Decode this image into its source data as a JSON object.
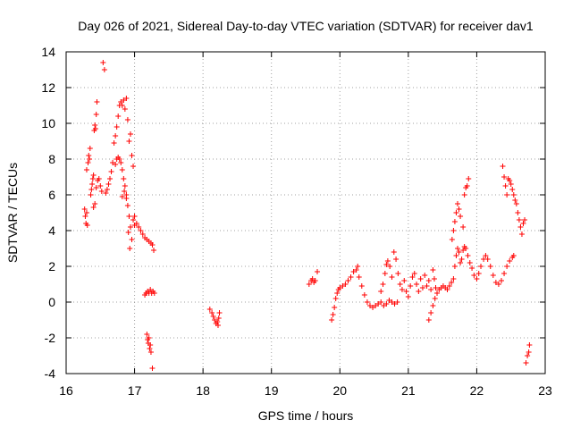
{
  "chart_data": {
    "type": "scatter",
    "title": "Day 026 of 2021, Sidereal Day-to-day VTEC variation (SDTVAR) for receiver dav1",
    "xlabel": "GPS time / hours",
    "ylabel": "SDTVAR / TECUs",
    "xlim": [
      16,
      23
    ],
    "ylim": [
      -4,
      14
    ],
    "grid": true,
    "marker": "+",
    "color": "#ff0000",
    "xticks": [
      "16",
      "17",
      "18",
      "19",
      "20",
      "21",
      "22",
      "23"
    ],
    "yticks": [
      "-4",
      "-2",
      "0",
      "2",
      "4",
      "6",
      "8",
      "10",
      "12",
      "14"
    ],
    "series": [
      {
        "name": "SDTVAR",
        "points": [
          [
            16.27,
            5.2
          ],
          [
            16.28,
            4.8
          ],
          [
            16.29,
            4.4
          ],
          [
            16.3,
            5.0
          ],
          [
            16.31,
            4.3
          ],
          [
            16.3,
            7.4
          ],
          [
            16.32,
            7.8
          ],
          [
            16.33,
            8.2
          ],
          [
            16.34,
            8.0
          ],
          [
            16.35,
            8.6
          ],
          [
            16.36,
            6.0
          ],
          [
            16.37,
            6.3
          ],
          [
            16.38,
            6.6
          ],
          [
            16.39,
            6.9
          ],
          [
            16.4,
            7.1
          ],
          [
            16.41,
            9.6
          ],
          [
            16.42,
            9.9
          ],
          [
            16.43,
            9.7
          ],
          [
            16.44,
            10.5
          ],
          [
            16.45,
            11.2
          ],
          [
            16.4,
            5.3
          ],
          [
            16.42,
            5.5
          ],
          [
            16.44,
            6.4
          ],
          [
            16.46,
            6.8
          ],
          [
            16.48,
            6.9
          ],
          [
            16.5,
            6.5
          ],
          [
            16.52,
            6.2
          ],
          [
            16.54,
            13.4
          ],
          [
            16.56,
            13.0
          ],
          [
            16.58,
            6.1
          ],
          [
            16.6,
            6.3
          ],
          [
            16.62,
            6.6
          ],
          [
            16.64,
            6.9
          ],
          [
            16.66,
            7.3
          ],
          [
            16.68,
            7.8
          ],
          [
            16.7,
            8.9
          ],
          [
            16.72,
            9.3
          ],
          [
            16.74,
            9.8
          ],
          [
            16.76,
            10.4
          ],
          [
            16.78,
            11.0
          ],
          [
            16.8,
            11.2
          ],
          [
            16.82,
            11.0
          ],
          [
            16.84,
            11.3
          ],
          [
            16.86,
            10.8
          ],
          [
            16.88,
            11.4
          ],
          [
            16.9,
            10.2
          ],
          [
            16.92,
            9.0
          ],
          [
            16.94,
            9.4
          ],
          [
            16.96,
            8.2
          ],
          [
            16.98,
            7.6
          ],
          [
            16.72,
            7.7
          ],
          [
            16.74,
            8.0
          ],
          [
            16.76,
            8.1
          ],
          [
            16.78,
            8.0
          ],
          [
            16.8,
            7.8
          ],
          [
            16.82,
            7.4
          ],
          [
            16.84,
            6.9
          ],
          [
            16.86,
            6.5
          ],
          [
            16.88,
            6.0
          ],
          [
            16.9,
            5.4
          ],
          [
            16.92,
            4.8
          ],
          [
            16.94,
            4.2
          ],
          [
            16.96,
            3.5
          ],
          [
            16.98,
            4.6
          ],
          [
            17.0,
            4.8
          ],
          [
            16.82,
            5.9
          ],
          [
            16.85,
            6.2
          ],
          [
            16.88,
            5.8
          ],
          [
            16.91,
            3.9
          ],
          [
            16.93,
            3.0
          ],
          [
            17.0,
            4.3
          ],
          [
            17.03,
            4.4
          ],
          [
            17.06,
            4.2
          ],
          [
            17.09,
            4.0
          ],
          [
            17.12,
            3.8
          ],
          [
            17.15,
            3.6
          ],
          [
            17.18,
            3.5
          ],
          [
            17.21,
            3.4
          ],
          [
            17.24,
            3.3
          ],
          [
            17.26,
            3.2
          ],
          [
            17.28,
            2.9
          ],
          [
            17.15,
            0.4
          ],
          [
            17.17,
            0.5
          ],
          [
            17.19,
            0.6
          ],
          [
            17.21,
            0.5
          ],
          [
            17.23,
            0.7
          ],
          [
            17.25,
            0.5
          ],
          [
            17.27,
            0.6
          ],
          [
            17.29,
            0.5
          ],
          [
            17.18,
            -1.8
          ],
          [
            17.19,
            -2.1
          ],
          [
            17.2,
            -2.3
          ],
          [
            17.21,
            -2.0
          ],
          [
            17.22,
            -2.6
          ],
          [
            17.23,
            -2.4
          ],
          [
            17.24,
            -2.8
          ],
          [
            17.26,
            -3.7
          ],
          [
            18.1,
            -0.4
          ],
          [
            18.13,
            -0.6
          ],
          [
            18.15,
            -0.8
          ],
          [
            18.17,
            -1.0
          ],
          [
            18.19,
            -1.2
          ],
          [
            18.21,
            -1.1
          ],
          [
            18.23,
            -0.9
          ],
          [
            18.24,
            -0.6
          ],
          [
            18.22,
            -1.3
          ],
          [
            19.55,
            1.0
          ],
          [
            19.58,
            1.2
          ],
          [
            19.6,
            1.3
          ],
          [
            19.62,
            1.1
          ],
          [
            19.64,
            1.2
          ],
          [
            19.67,
            1.7
          ],
          [
            19.88,
            -1.0
          ],
          [
            19.9,
            -0.7
          ],
          [
            19.92,
            -0.3
          ],
          [
            19.94,
            0.2
          ],
          [
            19.96,
            0.5
          ],
          [
            19.98,
            0.7
          ],
          [
            20.0,
            0.8
          ],
          [
            20.04,
            0.9
          ],
          [
            20.08,
            1.0
          ],
          [
            20.12,
            1.2
          ],
          [
            20.16,
            1.4
          ],
          [
            20.2,
            1.7
          ],
          [
            20.24,
            1.8
          ],
          [
            20.28,
            1.4
          ],
          [
            20.32,
            0.9
          ],
          [
            20.36,
            0.4
          ],
          [
            20.4,
            0.0
          ],
          [
            20.44,
            -0.2
          ],
          [
            20.48,
            -0.3
          ],
          [
            20.52,
            -0.2
          ],
          [
            20.56,
            -0.1
          ],
          [
            20.6,
            0.0
          ],
          [
            20.64,
            -0.2
          ],
          [
            20.68,
            -0.1
          ],
          [
            20.72,
            0.1
          ],
          [
            20.76,
            0.0
          ],
          [
            20.8,
            -0.1
          ],
          [
            20.84,
            0.0
          ],
          [
            20.26,
            2.0
          ],
          [
            20.6,
            0.6
          ],
          [
            20.63,
            1.0
          ],
          [
            20.66,
            1.6
          ],
          [
            20.68,
            2.1
          ],
          [
            20.7,
            2.3
          ],
          [
            20.73,
            2.0
          ],
          [
            20.76,
            1.4
          ],
          [
            20.79,
            2.8
          ],
          [
            20.82,
            2.4
          ],
          [
            20.85,
            1.6
          ],
          [
            20.88,
            1.0
          ],
          [
            20.91,
            0.7
          ],
          [
            20.94,
            1.2
          ],
          [
            20.97,
            0.6
          ],
          [
            21.0,
            0.3
          ],
          [
            21.03,
            0.9
          ],
          [
            21.06,
            1.4
          ],
          [
            21.09,
            1.6
          ],
          [
            21.12,
            1.0
          ],
          [
            21.15,
            0.6
          ],
          [
            21.18,
            1.3
          ],
          [
            21.21,
            0.8
          ],
          [
            21.24,
            1.5
          ],
          [
            21.27,
            0.9
          ],
          [
            21.3,
            1.2
          ],
          [
            21.33,
            0.7
          ],
          [
            21.36,
            1.8
          ],
          [
            21.38,
            1.3
          ],
          [
            21.4,
            0.8
          ],
          [
            21.3,
            -1.0
          ],
          [
            21.33,
            -0.6
          ],
          [
            21.36,
            -0.2
          ],
          [
            21.39,
            0.2
          ],
          [
            21.42,
            0.5
          ],
          [
            21.45,
            0.7
          ],
          [
            21.48,
            0.8
          ],
          [
            21.51,
            0.9
          ],
          [
            21.54,
            0.8
          ],
          [
            21.57,
            0.7
          ],
          [
            21.6,
            0.9
          ],
          [
            21.63,
            1.1
          ],
          [
            21.66,
            1.3
          ],
          [
            21.68,
            2.0
          ],
          [
            21.7,
            2.6
          ],
          [
            21.72,
            3.0
          ],
          [
            21.74,
            2.8
          ],
          [
            21.76,
            2.2
          ],
          [
            21.78,
            2.4
          ],
          [
            21.8,
            2.9
          ],
          [
            21.82,
            3.1
          ],
          [
            21.84,
            3.0
          ],
          [
            21.87,
            2.6
          ],
          [
            21.9,
            2.2
          ],
          [
            21.93,
            1.9
          ],
          [
            21.96,
            1.5
          ],
          [
            22.0,
            1.3
          ],
          [
            22.03,
            1.6
          ],
          [
            22.06,
            2.0
          ],
          [
            22.1,
            2.4
          ],
          [
            22.13,
            2.6
          ],
          [
            22.16,
            2.4
          ],
          [
            22.2,
            2.0
          ],
          [
            22.24,
            1.5
          ],
          [
            22.28,
            1.1
          ],
          [
            22.32,
            1.0
          ],
          [
            22.36,
            1.2
          ],
          [
            22.4,
            1.6
          ],
          [
            22.44,
            2.0
          ],
          [
            22.48,
            2.3
          ],
          [
            22.52,
            2.5
          ],
          [
            22.54,
            2.6
          ],
          [
            21.64,
            3.5
          ],
          [
            21.66,
            4.0
          ],
          [
            21.68,
            4.5
          ],
          [
            21.7,
            5.0
          ],
          [
            21.72,
            5.5
          ],
          [
            21.74,
            5.2
          ],
          [
            21.76,
            4.8
          ],
          [
            21.8,
            4.2
          ],
          [
            21.82,
            6.0
          ],
          [
            21.84,
            6.4
          ],
          [
            21.86,
            6.5
          ],
          [
            21.88,
            6.9
          ],
          [
            22.38,
            7.6
          ],
          [
            22.4,
            7.0
          ],
          [
            22.42,
            6.5
          ],
          [
            22.44,
            6.0
          ],
          [
            22.46,
            6.9
          ],
          [
            22.48,
            6.8
          ],
          [
            22.5,
            6.6
          ],
          [
            22.52,
            6.3
          ],
          [
            22.54,
            6.0
          ],
          [
            22.56,
            5.7
          ],
          [
            22.58,
            5.5
          ],
          [
            22.6,
            5.0
          ],
          [
            22.62,
            4.6
          ],
          [
            22.64,
            4.2
          ],
          [
            22.66,
            3.8
          ],
          [
            22.68,
            4.4
          ],
          [
            22.7,
            4.6
          ],
          [
            22.72,
            -3.4
          ],
          [
            22.74,
            -3.0
          ],
          [
            22.76,
            -2.8
          ],
          [
            22.77,
            -2.4
          ]
        ]
      }
    ]
  }
}
